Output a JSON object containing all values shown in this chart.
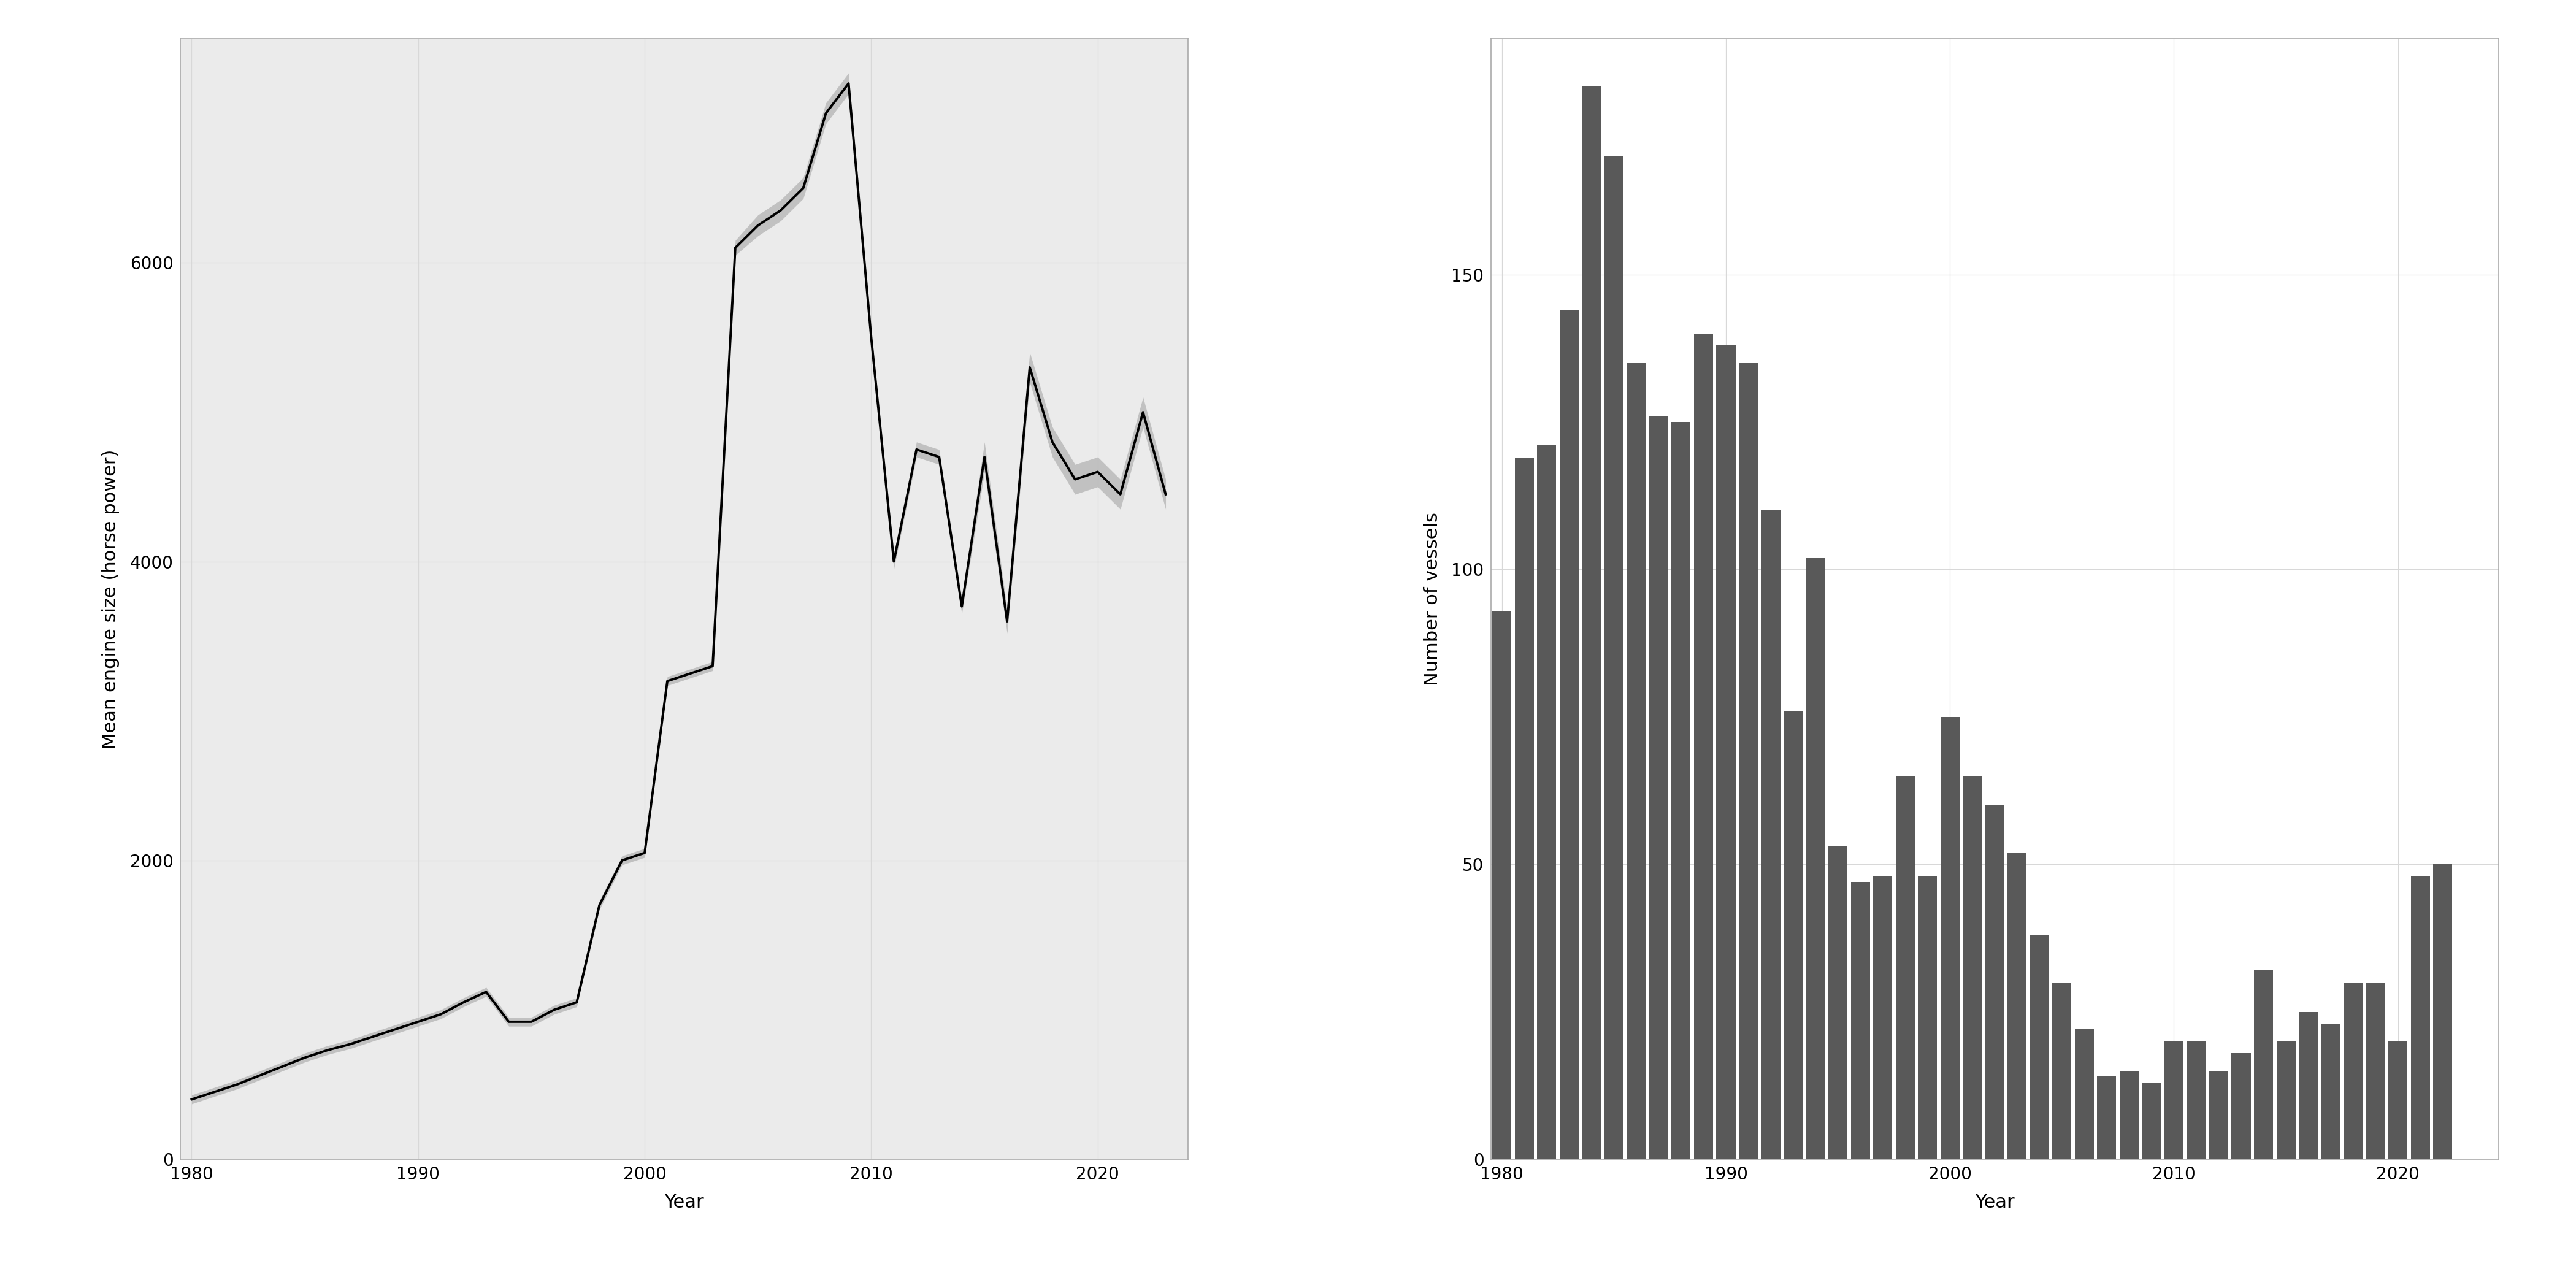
{
  "left_years": [
    1980,
    1981,
    1982,
    1983,
    1984,
    1985,
    1986,
    1987,
    1988,
    1989,
    1990,
    1991,
    1992,
    1993,
    1994,
    1995,
    1996,
    1997,
    1998,
    1999,
    2000,
    2001,
    2002,
    2003,
    2004,
    2005,
    2006,
    2007,
    2008,
    2009,
    2010,
    2011,
    2012,
    2013,
    2014,
    2015,
    2016,
    2017,
    2018,
    2019,
    2020,
    2021,
    2022,
    2023
  ],
  "left_values": [
    400,
    450,
    500,
    560,
    620,
    680,
    730,
    770,
    820,
    870,
    920,
    970,
    1050,
    1120,
    920,
    920,
    1000,
    1050,
    1700,
    2000,
    2050,
    3200,
    3250,
    3300,
    6100,
    6250,
    6350,
    6500,
    7000,
    7200,
    5500,
    4000,
    4750,
    4700,
    3700,
    4700,
    3600,
    5300,
    4800,
    4550,
    4600,
    4450,
    5000,
    4450
  ],
  "left_ci_low": [
    370,
    420,
    470,
    530,
    590,
    650,
    700,
    740,
    790,
    840,
    890,
    940,
    1020,
    1090,
    890,
    890,
    970,
    1020,
    1670,
    1970,
    2020,
    3170,
    3220,
    3270,
    6050,
    6180,
    6280,
    6430,
    6930,
    7130,
    5450,
    3950,
    4700,
    4650,
    3650,
    4600,
    3520,
    5200,
    4700,
    4450,
    4500,
    4350,
    4900,
    4350
  ],
  "left_ci_high": [
    430,
    480,
    530,
    590,
    650,
    710,
    760,
    800,
    850,
    900,
    950,
    1000,
    1080,
    1150,
    950,
    950,
    1030,
    1080,
    1730,
    2030,
    2080,
    3230,
    3280,
    3330,
    6150,
    6320,
    6420,
    6570,
    7070,
    7270,
    5550,
    4050,
    4800,
    4750,
    3750,
    4800,
    3680,
    5400,
    4900,
    4650,
    4700,
    4550,
    5100,
    4550
  ],
  "right_years": [
    1980,
    1981,
    1982,
    1983,
    1984,
    1985,
    1986,
    1987,
    1988,
    1989,
    1990,
    1991,
    1992,
    1993,
    1994,
    1995,
    1996,
    1997,
    1998,
    1999,
    2000,
    2001,
    2002,
    2003,
    2004,
    2005,
    2006,
    2007,
    2008,
    2009,
    2010,
    2011,
    2012,
    2013,
    2014,
    2015,
    2016,
    2017,
    2018,
    2019,
    2020,
    2021,
    2022,
    2023
  ],
  "right_values": [
    93,
    119,
    121,
    144,
    182,
    170,
    135,
    126,
    125,
    140,
    138,
    135,
    110,
    76,
    102,
    53,
    47,
    48,
    65,
    48,
    75,
    65,
    60,
    52,
    38,
    30,
    22,
    14,
    15,
    13,
    20,
    20,
    15,
    18,
    32,
    20,
    25,
    23,
    30,
    30,
    20,
    48,
    50,
    0
  ],
  "left_ylabel": "Mean engine size (horse power)",
  "right_ylabel": "Number of vessels",
  "xlabel": "Year",
  "left_xlim": [
    1979.5,
    2024
  ],
  "right_xlim": [
    1979.5,
    2024.5
  ],
  "left_ylim": [
    0,
    7500
  ],
  "right_ylim": [
    0,
    190
  ],
  "left_yticks": [
    0,
    2000,
    4000,
    6000
  ],
  "right_yticks": [
    0,
    50,
    100,
    150
  ],
  "left_xticks": [
    1980,
    1990,
    2000,
    2010,
    2020
  ],
  "right_xticks": [
    1980,
    1990,
    2000,
    2010,
    2020
  ],
  "line_color": "#000000",
  "ci_color": "#b0b0b0",
  "bar_color": "#595959",
  "bg_color": "#ffffff",
  "grid_color": "#d8d8d8",
  "panel_bg": "#ebebeb",
  "spine_color": "#aaaaaa"
}
